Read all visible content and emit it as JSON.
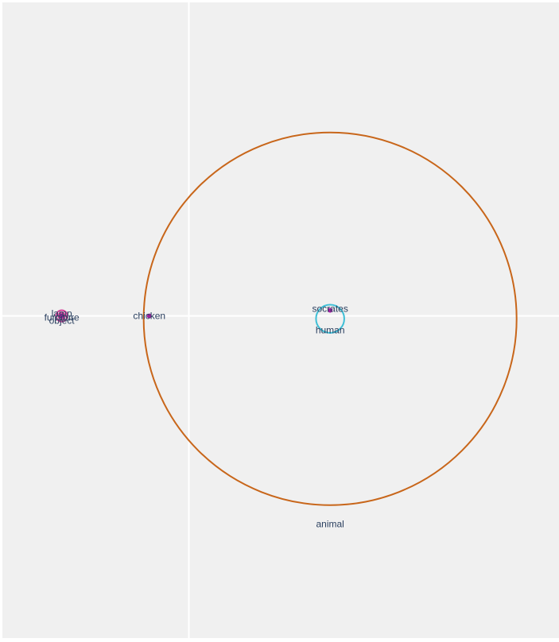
{
  "chart_data": {
    "type": "scatter",
    "title": "",
    "xlabel": "",
    "ylabel": "",
    "grid": false,
    "zero_lines": true,
    "xlim": [
      -0.66,
      1.31
    ],
    "ylim": [
      -1.13,
      1.1
    ],
    "colors": {
      "background": "#f0f0f0",
      "zero_line": "#ffffff",
      "label": "#2a3f5f",
      "animal_circle": "#c8661a",
      "human_circle": "#3fbfd6",
      "small_circle": "#d63f9a",
      "point": "#a020a0"
    },
    "circles": [
      {
        "name": "animal",
        "cx": 0.5,
        "cy": -0.01,
        "r": 0.66,
        "color": "#c8661a"
      },
      {
        "name": "human",
        "cx": 0.5,
        "cy": -0.01,
        "r": 0.05,
        "color": "#3fbfd6"
      },
      {
        "name": "furniture",
        "cx": -0.45,
        "cy": 0.0,
        "r": 0.02,
        "color": "#d63f9a"
      },
      {
        "name": "lamp",
        "cx": -0.45,
        "cy": 0.0,
        "r": 0.012,
        "color": "#d63f9a"
      },
      {
        "name": "object",
        "cx": -0.45,
        "cy": 0.0,
        "r": 0.006,
        "color": "#d63f9a"
      }
    ],
    "points": [
      {
        "name": "socrates",
        "x": 0.5,
        "y": 0.02
      },
      {
        "name": "chicken",
        "x": -0.14,
        "y": 0.0
      },
      {
        "name": "lamp",
        "x": -0.45,
        "y": 0.0
      }
    ],
    "labels": [
      {
        "text": "animal",
        "x": 0.5,
        "y": -0.73
      },
      {
        "text": "human",
        "x": 0.5,
        "y": -0.05
      },
      {
        "text": "socrates",
        "x": 0.5,
        "y": 0.025
      },
      {
        "text": "chicken",
        "x": -0.14,
        "y": 0.0
      },
      {
        "text": "furniture",
        "x": -0.45,
        "y": -0.005
      },
      {
        "text": "lamp",
        "x": -0.45,
        "y": 0.008
      },
      {
        "text": "object",
        "x": -0.45,
        "y": -0.017
      }
    ]
  }
}
